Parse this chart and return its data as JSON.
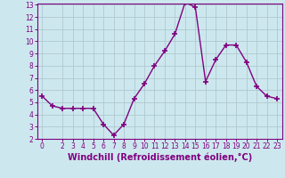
{
  "x": [
    0,
    1,
    2,
    3,
    4,
    5,
    6,
    7,
    8,
    9,
    10,
    11,
    12,
    13,
    14,
    15,
    16,
    17,
    18,
    19,
    20,
    21,
    22,
    23
  ],
  "y": [
    5.5,
    4.7,
    4.5,
    4.5,
    4.5,
    4.5,
    3.2,
    2.3,
    3.2,
    5.3,
    6.5,
    8.0,
    9.2,
    10.6,
    13.2,
    12.8,
    6.7,
    8.5,
    9.7,
    9.7,
    8.3,
    6.3,
    5.5,
    5.3
  ],
  "line_color": "#800080",
  "marker": "+",
  "marker_size": 4,
  "marker_linewidth": 1.2,
  "line_width": 1,
  "bg_color": "#cce8ee",
  "grid_color": "#b0c8d0",
  "xlabel": "Windchill (Refroidissement éolien,°C)",
  "xlabel_color": "#800080",
  "tick_color": "#800080",
  "ylim": [
    2,
    13
  ],
  "xlim": [
    -0.5,
    23.5
  ],
  "yticks": [
    2,
    3,
    4,
    5,
    6,
    7,
    8,
    9,
    10,
    11,
    12,
    13
  ],
  "xticks": [
    0,
    2,
    3,
    4,
    5,
    6,
    7,
    8,
    9,
    10,
    11,
    12,
    13,
    14,
    15,
    16,
    17,
    18,
    19,
    20,
    21,
    22,
    23
  ],
  "tick_fontsize": 5.5,
  "xlabel_fontsize": 7.0,
  "spine_color": "#800080"
}
